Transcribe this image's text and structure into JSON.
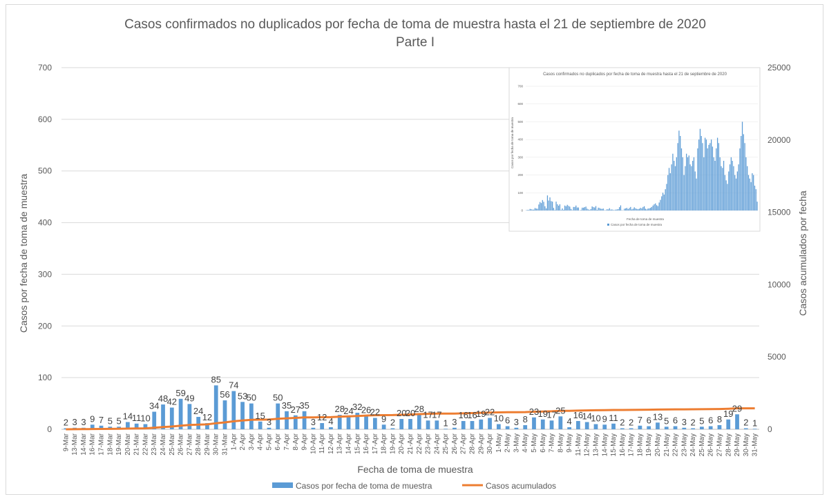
{
  "chart_data": {
    "type": "bar",
    "title": "Casos confirmados no duplicados por fecha de toma de muestra hasta el 21 de septiembre de 2020",
    "subtitle": "Parte I",
    "xlabel": "Fecha de toma de muestra",
    "ylabel": "Casos por fecha de toma de muestra",
    "y2label": "Casos acumulados por fecha",
    "ylim": [
      0,
      700
    ],
    "yticks": [
      "0",
      "100",
      "200",
      "300",
      "400",
      "500",
      "600",
      "700"
    ],
    "y2lim": [
      0,
      25000
    ],
    "y2ticks": [
      "0",
      "5000",
      "10000",
      "15000",
      "20000",
      "25000"
    ],
    "grid": true,
    "legend_position": "bottom",
    "colors": {
      "bars": "#5b9bd5",
      "line": "#ed7d31"
    },
    "categories": [
      "9-Mar",
      "13-Mar",
      "14-Mar",
      "16-Mar",
      "17-Mar",
      "18-Mar",
      "19-Mar",
      "20-Mar",
      "21-Mar",
      "22-Mar",
      "23-Mar",
      "24-Mar",
      "25-Mar",
      "26-Mar",
      "27-Mar",
      "28-Mar",
      "29-Mar",
      "30-Mar",
      "31-Mar",
      "1-Apr",
      "2-Apr",
      "3-Apr",
      "4-Apr",
      "5-Apr",
      "6-Apr",
      "7-Apr",
      "8-Apr",
      "9-Apr",
      "10-Apr",
      "11-Apr",
      "12-Apr",
      "13-Apr",
      "14-Apr",
      "15-Apr",
      "16-Apr",
      "17-Apr",
      "18-Apr",
      "19-Apr",
      "20-Apr",
      "21-Apr",
      "22-Apr",
      "23-Apr",
      "24-Apr",
      "25-Apr",
      "26-Apr",
      "27-Apr",
      "28-Apr",
      "29-Apr",
      "30-Apr",
      "1-May",
      "2-May",
      "3-May",
      "4-May",
      "5-May",
      "6-May",
      "7-May",
      "8-May",
      "9-May",
      "11-May",
      "12-May",
      "13-May",
      "14-May",
      "15-May",
      "16-May",
      "17-May",
      "18-May",
      "19-May",
      "20-May",
      "21-May",
      "22-May",
      "23-May",
      "24-May",
      "25-May",
      "26-May",
      "27-May",
      "28-May",
      "29-May",
      "30-May",
      "31-May"
    ],
    "series": [
      {
        "name": "Casos por fecha de toma de muestra",
        "axis": "left",
        "values": [
          2,
          3,
          3,
          9,
          7,
          5,
          5,
          14,
          11,
          10,
          34,
          48,
          42,
          59,
          49,
          24,
          12,
          85,
          56,
          74,
          53,
          50,
          15,
          3,
          50,
          35,
          27,
          35,
          3,
          12,
          4,
          28,
          24,
          32,
          26,
          22,
          9,
          2,
          20,
          20,
          28,
          17,
          17,
          1,
          3,
          16,
          16,
          19,
          22,
          10,
          6,
          3,
          8,
          23,
          19,
          17,
          25,
          4,
          16,
          14,
          10,
          9,
          11,
          2,
          2,
          7,
          6,
          13,
          5,
          6,
          3,
          2,
          5,
          6,
          8,
          19,
          29,
          2,
          1
        ]
      },
      {
        "name": "Casos acumulados",
        "axis": "right",
        "values": [
          2,
          5,
          8,
          17,
          24,
          29,
          34,
          48,
          59,
          69,
          103,
          151,
          193,
          252,
          301,
          325,
          337,
          422,
          478,
          552,
          605,
          655,
          670,
          673,
          723,
          758,
          785,
          820,
          823,
          835,
          839,
          867,
          891,
          923,
          949,
          971,
          980,
          982,
          1002,
          1022,
          1050,
          1067,
          1084,
          1085,
          1088,
          1104,
          1120,
          1139,
          1161,
          1171,
          1177,
          1180,
          1188,
          1211,
          1230,
          1247,
          1272,
          1276,
          1292,
          1306,
          1316,
          1325,
          1336,
          1338,
          1340,
          1347,
          1353,
          1366,
          1371,
          1377,
          1380,
          1382,
          1387,
          1393,
          1401,
          1420,
          1449,
          1451,
          1452
        ]
      }
    ],
    "inset": {
      "title": "Casos confirmados no duplicados por fecha de toma de muestra hasta el 21 de septiembre de 2020",
      "xlabel": "Fecha de toma de muestra",
      "ylabel": "Casos por fecha de toma de muestra",
      "legend": "Casos por fecha de toma de muestra",
      "ylim": [
        0,
        700
      ],
      "yticks": [
        "0",
        "100",
        "200",
        "300",
        "400",
        "500",
        "600",
        "700"
      ],
      "values": [
        2,
        3,
        3,
        9,
        7,
        5,
        5,
        14,
        11,
        10,
        34,
        48,
        42,
        59,
        49,
        24,
        12,
        85,
        56,
        74,
        53,
        50,
        15,
        3,
        50,
        35,
        27,
        35,
        3,
        12,
        4,
        28,
        24,
        32,
        26,
        22,
        9,
        2,
        20,
        20,
        28,
        17,
        17,
        1,
        3,
        16,
        16,
        19,
        22,
        10,
        6,
        3,
        8,
        23,
        19,
        17,
        25,
        4,
        16,
        14,
        10,
        9,
        11,
        2,
        2,
        7,
        6,
        13,
        5,
        6,
        3,
        2,
        5,
        6,
        8,
        19,
        29,
        2,
        1,
        10,
        12,
        15,
        8,
        14,
        20,
        6,
        10,
        18,
        12,
        9,
        7,
        10,
        15,
        12,
        20,
        24,
        10,
        6,
        11,
        12,
        15,
        20,
        28,
        35,
        40,
        30,
        25,
        45,
        60,
        80,
        100,
        90,
        120,
        150,
        200,
        240,
        210,
        260,
        320,
        280,
        250,
        300,
        380,
        450,
        420,
        350,
        300,
        200,
        250,
        320,
        300,
        310,
        260,
        250,
        280,
        300,
        220,
        180,
        350,
        400,
        460,
        420,
        380,
        300,
        410,
        400,
        350,
        370,
        380,
        400,
        360,
        300,
        280,
        350,
        410,
        380,
        300,
        250,
        240,
        280,
        200,
        170,
        150,
        220,
        260,
        300,
        280,
        250,
        200,
        180,
        220,
        260,
        350,
        420,
        500,
        430,
        380,
        300,
        250,
        200,
        180,
        160,
        210,
        200,
        140,
        120,
        50
      ]
    }
  }
}
